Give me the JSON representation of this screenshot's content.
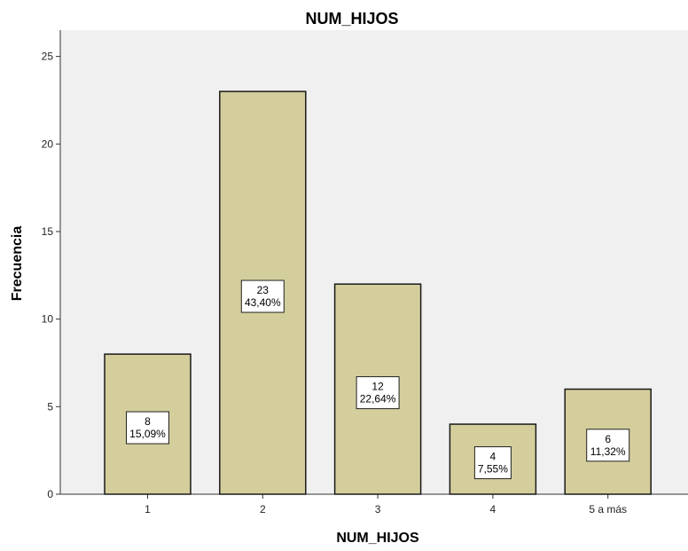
{
  "chart_data": {
    "type": "bar",
    "title": "NUM_HIJOS",
    "xlabel": "NUM_HIJOS",
    "ylabel": "Frecuencia",
    "categories": [
      "1",
      "2",
      "3",
      "4",
      "5 a más"
    ],
    "values": [
      8,
      23,
      12,
      4,
      6
    ],
    "percent_labels": [
      "15,09%",
      "43,40%",
      "22,64%",
      "7,55%",
      "11,32%"
    ],
    "ylim": [
      0,
      26.5
    ],
    "yticks": [
      0,
      5,
      10,
      15,
      20,
      25
    ],
    "grid": false,
    "legend": "none",
    "colors": {
      "plot_background": "#f0f0f0",
      "bar_fill": "#d3ce9c",
      "bar_stroke": "#1a1a1a",
      "label_box_fill": "#ffffff"
    }
  }
}
